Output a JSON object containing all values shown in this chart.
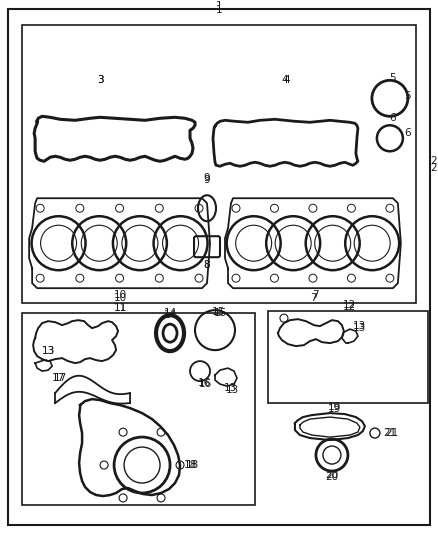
{
  "background_color": "#ffffff",
  "line_color": "#1a1a1a",
  "label_fontsize": 7.5,
  "lw_main": 1.5,
  "lw_thin": 0.9
}
